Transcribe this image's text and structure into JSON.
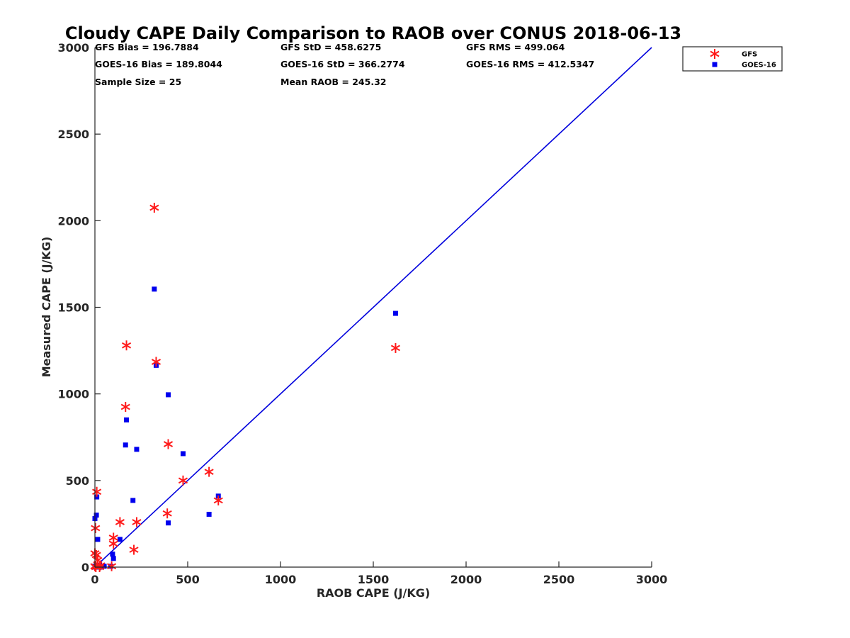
{
  "chart_data": {
    "type": "scatter",
    "title": "Cloudy CAPE Daily Comparison to RAOB over CONUS 2018-06-13",
    "xlabel": "RAOB CAPE (J/KG)",
    "ylabel": "Measured CAPE (J/KG)",
    "xlim": [
      0,
      3000
    ],
    "ylim": [
      0,
      3000
    ],
    "xticks": [
      "0",
      "500",
      "1000",
      "1500",
      "2000",
      "2500",
      "3000"
    ],
    "yticks": [
      "0",
      "500",
      "1000",
      "1500",
      "2000",
      "2500",
      "3000"
    ],
    "xtick_values": [
      0,
      500,
      1000,
      1500,
      2000,
      2500,
      3000
    ],
    "ytick_values": [
      0,
      500,
      1000,
      1500,
      2000,
      2500,
      3000
    ],
    "grid": false,
    "legend_position": "top-right, outside plot",
    "stats": [
      [
        "GFS Bias = 196.7884",
        "GFS StD = 458.6275",
        "GFS RMS = 499.064"
      ],
      [
        "GOES-16 Bias = 189.8044",
        "GOES-16 StD = 366.2774",
        "GOES-16 RMS = 412.5347"
      ],
      [
        "Sample Size = 25",
        "Mean RAOB = 245.32"
      ]
    ],
    "reference_line": {
      "x": [
        0,
        3000
      ],
      "y": [
        0,
        3000
      ],
      "color": "#0000dd"
    },
    "series": [
      {
        "name": "GFS",
        "marker": "asterisk",
        "color": "#ff1a1a",
        "x": [
          320,
          170,
          1620,
          330,
          165,
          395,
          615,
          475,
          665,
          390,
          10,
          135,
          225,
          3,
          100,
          100,
          210,
          0,
          8,
          15,
          30,
          90,
          0,
          5,
          25
        ],
        "y": [
          2075,
          1280,
          1265,
          1185,
          925,
          710,
          550,
          500,
          385,
          310,
          435,
          260,
          260,
          225,
          170,
          135,
          100,
          80,
          70,
          40,
          10,
          5,
          5,
          0,
          0
        ]
      },
      {
        "name": "GOES-16",
        "marker": "square",
        "color": "#0000ee",
        "x": [
          320,
          1620,
          330,
          395,
          170,
          165,
          225,
          475,
          665,
          615,
          205,
          395,
          10,
          0,
          8,
          15,
          135,
          95,
          100,
          25,
          0,
          50,
          85,
          5,
          30
        ],
        "y": [
          1605,
          1465,
          1165,
          995,
          850,
          705,
          680,
          655,
          410,
          305,
          385,
          255,
          405,
          280,
          300,
          160,
          160,
          75,
          50,
          10,
          5,
          5,
          5,
          0,
          0
        ]
      }
    ]
  }
}
